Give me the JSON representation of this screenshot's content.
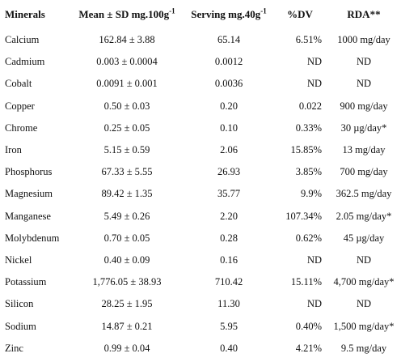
{
  "headers": {
    "minerals": "Minerals",
    "mean_sd": "Mean ± SD mg.100g",
    "mean_sd_sup": "-1",
    "serving": "Serving mg.40g",
    "serving_sup": "-1",
    "dv": "%DV",
    "rda": "RDA**"
  },
  "rows": [
    {
      "mineral": "Calcium",
      "mean_sd": "162.84 ± 3.88",
      "serving": "65.14",
      "dv": "6.51%",
      "rda": "1000 mg/day"
    },
    {
      "mineral": "Cadmium",
      "mean_sd": "0.003 ± 0.0004",
      "serving": "0.0012",
      "dv": "ND",
      "rda": "ND"
    },
    {
      "mineral": "Cobalt",
      "mean_sd": "0.0091 ± 0.001",
      "serving": "0.0036",
      "dv": "ND",
      "rda": "ND"
    },
    {
      "mineral": "Copper",
      "mean_sd": "0.50 ± 0.03",
      "serving": "0.20",
      "dv": "0.022",
      "rda": "900 mg/day"
    },
    {
      "mineral": "Chrome",
      "mean_sd": "0.25 ± 0.05",
      "serving": "0.10",
      "dv": "0.33%",
      "rda": "30 µg/day*"
    },
    {
      "mineral": "Iron",
      "mean_sd": "5.15 ± 0.59",
      "serving": "2.06",
      "dv": "15.85%",
      "rda": "13 mg/day"
    },
    {
      "mineral": "Phosphorus",
      "mean_sd": "67.33 ± 5.55",
      "serving": "26.93",
      "dv": "3.85%",
      "rda": "700 mg/day"
    },
    {
      "mineral": "Magnesium",
      "mean_sd": "89.42 ± 1.35",
      "serving": "35.77",
      "dv": "9.9%",
      "rda": "362.5 mg/day"
    },
    {
      "mineral": "Manganese",
      "mean_sd": "5.49 ± 0.26",
      "serving": "2.20",
      "dv": "107.34%",
      "rda": "2.05 mg/day*"
    },
    {
      "mineral": "Molybdenum",
      "mean_sd": "0.70 ± 0.05",
      "serving": "0.28",
      "dv": "0.62%",
      "rda": "45 µg/day"
    },
    {
      "mineral": "Nickel",
      "mean_sd": "0.40 ± 0.09",
      "serving": "0.16",
      "dv": "ND",
      "rda": "ND"
    },
    {
      "mineral": "Potassium",
      "mean_sd": "1,776.05 ± 38.93",
      "serving": "710.42",
      "dv": "15.11%",
      "rda": "4,700 mg/day*"
    },
    {
      "mineral": "Silicon",
      "mean_sd": "28.25 ± 1.95",
      "serving": "11.30",
      "dv": "ND",
      "rda": "ND"
    },
    {
      "mineral": "Sodium",
      "mean_sd": "14.87 ± 0.21",
      "serving": "5.95",
      "dv": "0.40%",
      "rda": "1,500 mg/day*"
    },
    {
      "mineral": "Zinc",
      "mean_sd": "0.99 ± 0.04",
      "serving": "0.40",
      "dv": "4.21%",
      "rda": "9.5 mg/day"
    }
  ]
}
